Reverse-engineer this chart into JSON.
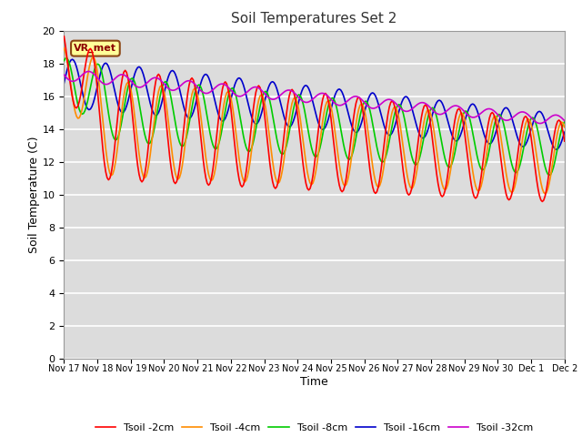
{
  "title": "Soil Temperatures Set 2",
  "xlabel": "Time",
  "ylabel": "Soil Temperature (C)",
  "ylim": [
    0,
    20
  ],
  "yticks": [
    0,
    2,
    4,
    6,
    8,
    10,
    12,
    14,
    16,
    18,
    20
  ],
  "xtick_labels": [
    "Nov 17",
    "Nov 18",
    "Nov 19",
    "Nov 20",
    "Nov 21",
    "Nov 22",
    "Nov 23",
    "Nov 24",
    "Nov 25",
    "Nov 26",
    "Nov 27",
    "Nov 28",
    "Nov 29",
    "Nov 30",
    "Dec 1",
    "Dec 2"
  ],
  "series_colors": {
    "Tsoil -2cm": "#ff0000",
    "Tsoil -4cm": "#ff8c00",
    "Tsoil -8cm": "#00cc00",
    "Tsoil -16cm": "#0000cc",
    "Tsoil -32cm": "#cc00cc"
  },
  "annotation_text": "VR_met",
  "bg_color": "#dcdcdc",
  "grid_color": "#ffffff",
  "fig_bg": "#ffffff"
}
